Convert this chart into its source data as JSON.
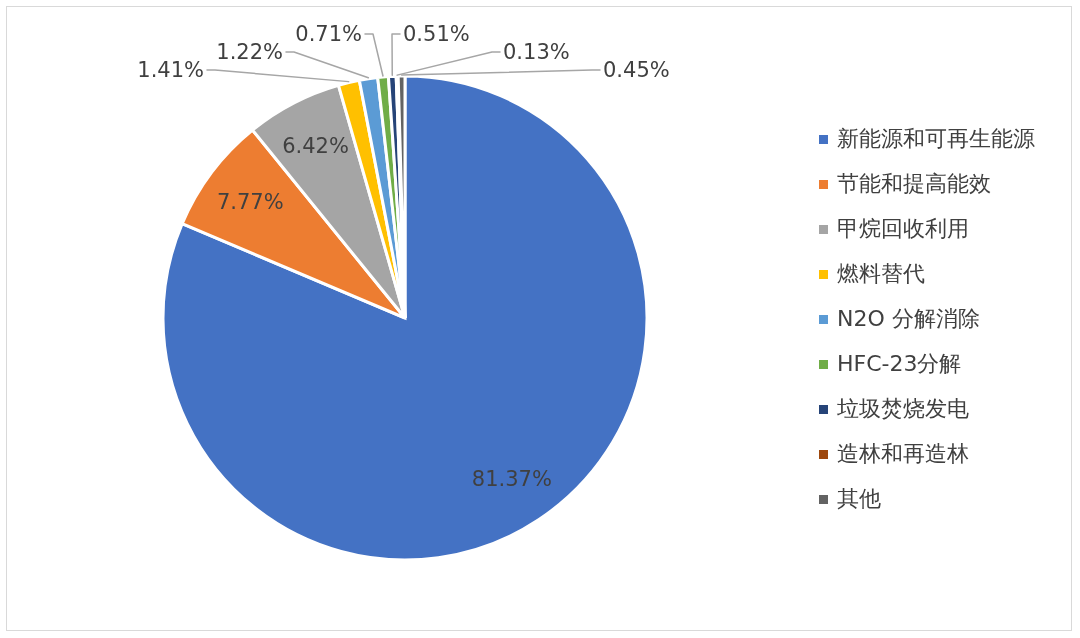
{
  "chart_data": {
    "type": "pie",
    "categories": [
      "新能源和可再生能源",
      "节能和提高能效",
      "甲烷回收利用",
      "燃料替代",
      "N2O 分解消除",
      "HFC-23分解",
      "垃圾焚烧发电",
      "造林和再造林",
      "其他"
    ],
    "values": [
      81.37,
      7.77,
      6.42,
      1.41,
      1.22,
      0.71,
      0.51,
      0.13,
      0.45
    ],
    "colors": [
      "#4472c4",
      "#ed7d31",
      "#a5a5a5",
      "#ffc000",
      "#5b9bd5",
      "#70ad47",
      "#264478",
      "#9e480e",
      "#636363"
    ],
    "value_labels": [
      "81.37%",
      "7.77%",
      "6.42%",
      "1.41%",
      "1.22%",
      "0.71%",
      "0.51%",
      "0.13%",
      "0.45%"
    ],
    "legend": "right"
  }
}
